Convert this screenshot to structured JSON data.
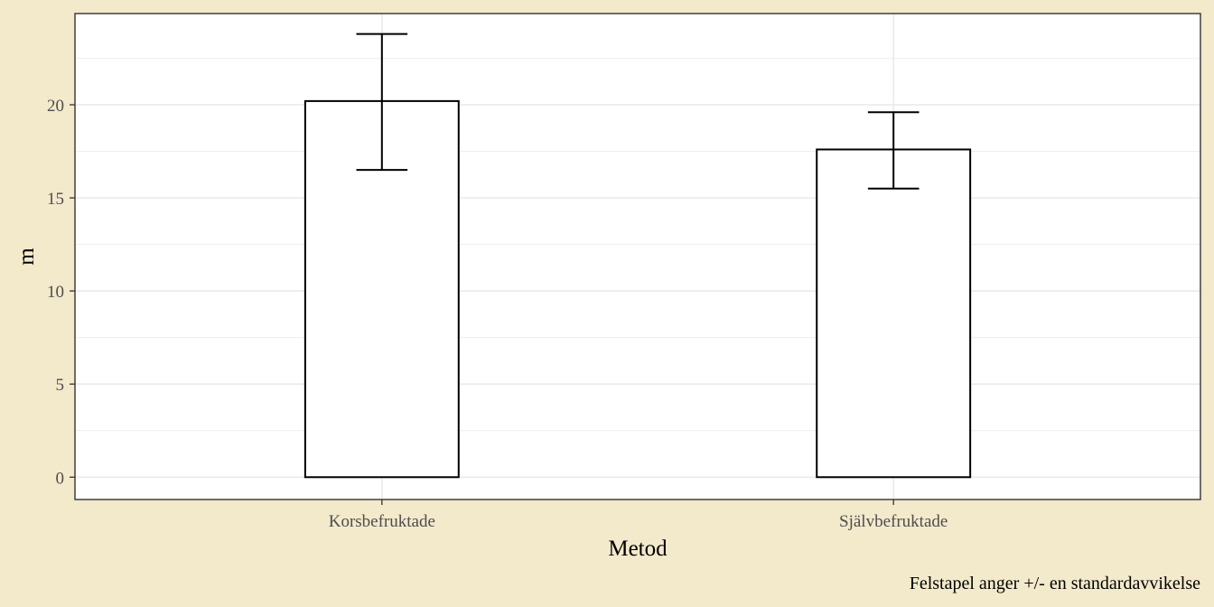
{
  "chart_data": {
    "type": "bar",
    "categories": [
      "Korsbefruktade",
      "Självbefruktade"
    ],
    "values": [
      20.2,
      17.6
    ],
    "error_low": [
      16.5,
      15.5
    ],
    "error_high": [
      23.8,
      19.6
    ],
    "xlabel": "Metod",
    "ylabel": "m",
    "caption": "Felstapel anger +/- en standardavvikelse",
    "ylim": [
      -1.2,
      24.9
    ],
    "yticks": [
      0,
      5,
      10,
      15,
      20
    ],
    "ytick_labels": [
      "0",
      "5",
      "10",
      "15",
      "20"
    ],
    "grid": true,
    "legend": "none",
    "colors": {
      "bar_fill": "#FFFFFF",
      "bar_stroke": "#000000",
      "panel_background": "#FFFFFF",
      "grid": "#EBEBEB",
      "page_background": "#F3E9CB"
    }
  }
}
